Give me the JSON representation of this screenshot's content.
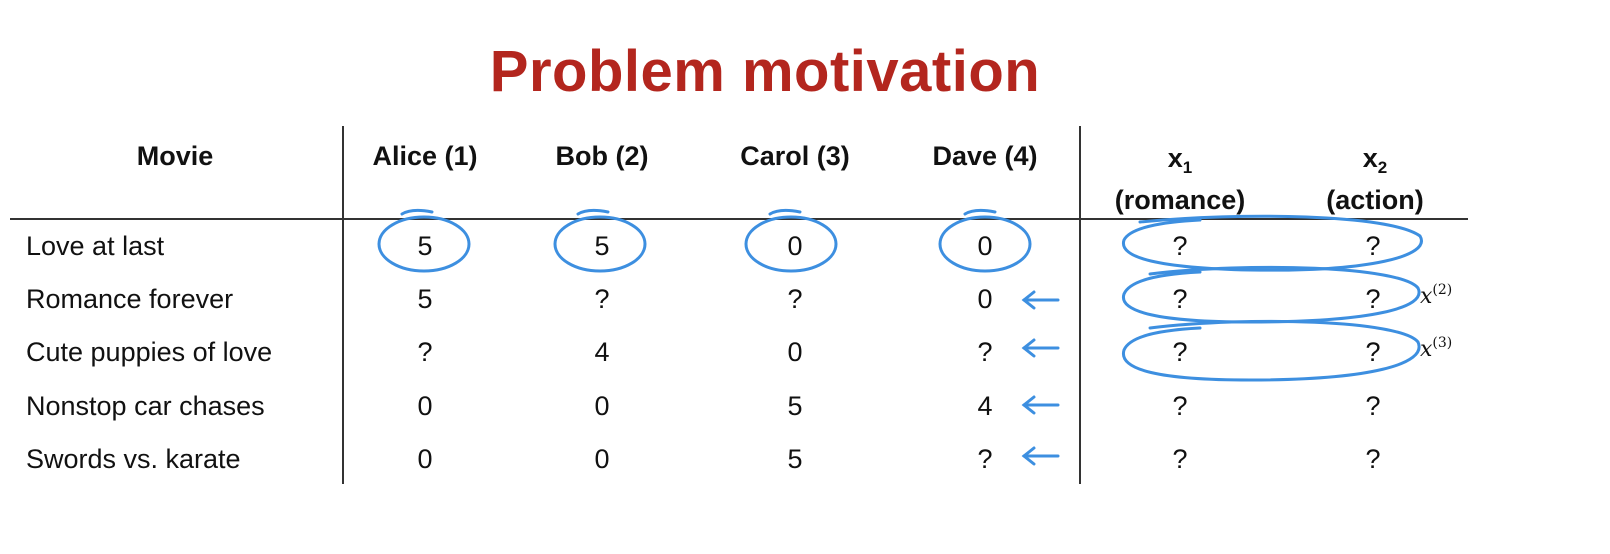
{
  "title": "Problem motivation",
  "headers": {
    "movie": "Movie",
    "users": [
      "Alice (1)",
      "Bob (2)",
      "Carol (3)",
      "Dave (4)"
    ],
    "features": [
      {
        "symbol": "x",
        "subscript": "1",
        "caption": "(romance)"
      },
      {
        "symbol": "x",
        "subscript": "2",
        "caption": "(action)"
      }
    ]
  },
  "rows": [
    {
      "movie": "Love at last",
      "ratings": [
        "5",
        "5",
        "0",
        "0"
      ],
      "features": [
        "?",
        "?"
      ]
    },
    {
      "movie": "Romance forever",
      "ratings": [
        "5",
        "?",
        "?",
        "0"
      ],
      "features": [
        "?",
        "?"
      ]
    },
    {
      "movie": "Cute puppies of love",
      "ratings": [
        "?",
        "4",
        "0",
        "?"
      ],
      "features": [
        "?",
        "?"
      ]
    },
    {
      "movie": "Nonstop car chases",
      "ratings": [
        "0",
        "0",
        "5",
        "4"
      ],
      "features": [
        "?",
        "?"
      ]
    },
    {
      "movie": "Swords vs. karate",
      "ratings": [
        "0",
        "0",
        "5",
        "?"
      ],
      "features": [
        "?",
        "?"
      ]
    }
  ],
  "annotations": {
    "feature_labels": [
      {
        "symbol": "x",
        "superscript": "(2)"
      },
      {
        "symbol": "x",
        "superscript": "(3)"
      }
    ],
    "ink_color": "#3d8fe0"
  }
}
